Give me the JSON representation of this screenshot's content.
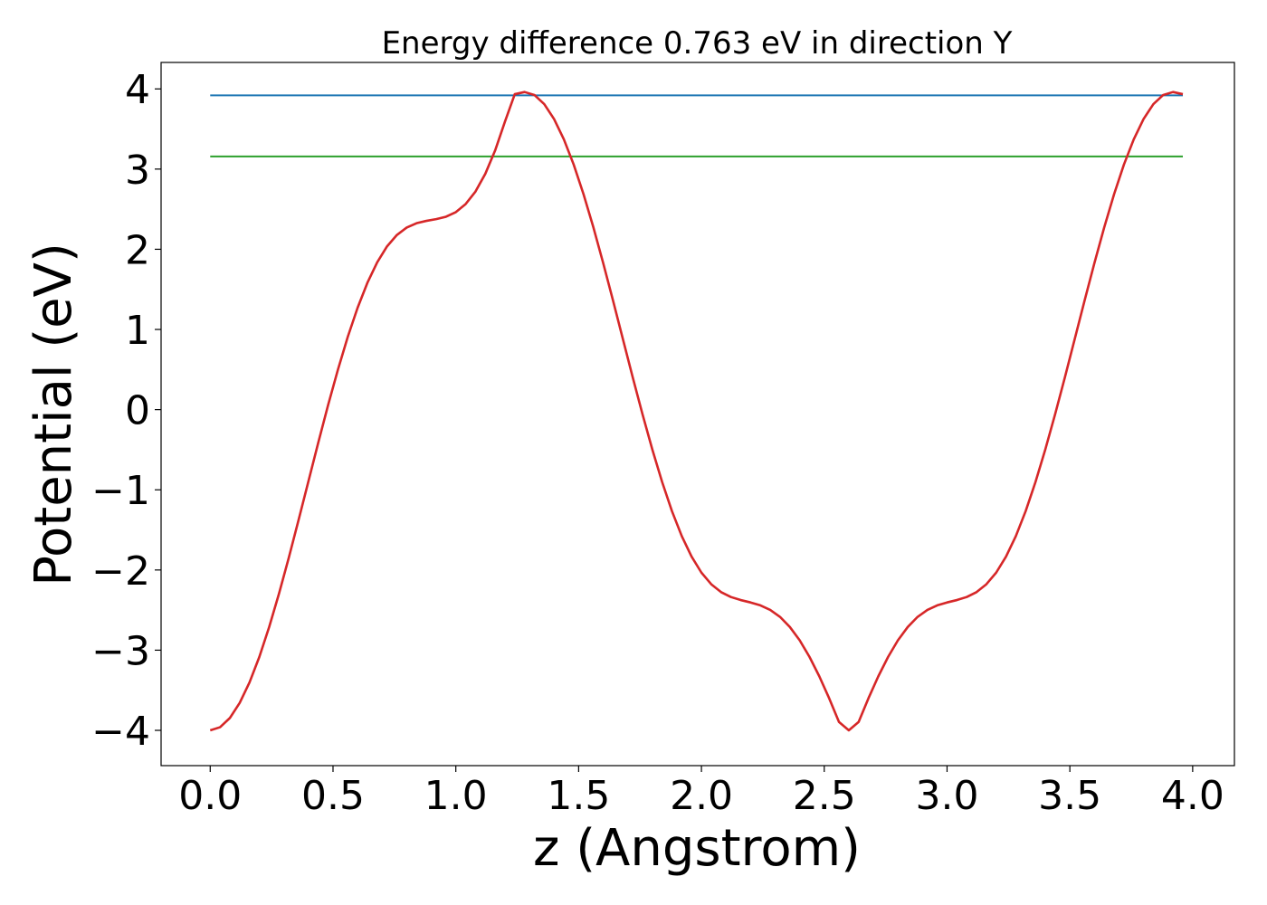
{
  "chart_data": {
    "type": "line",
    "title": "Energy difference 0.763 eV in direction Y",
    "xlabel": "z (Angstrom)",
    "ylabel": "Potential (eV)",
    "xlim": [
      -0.2,
      4.17
    ],
    "ylim": [
      -4.44,
      4.33
    ],
    "xticks": [
      0.0,
      0.5,
      1.0,
      1.5,
      2.0,
      2.5,
      3.0,
      3.5,
      4.0
    ],
    "xtick_labels": [
      "0.0",
      "0.5",
      "1.0",
      "1.5",
      "2.0",
      "2.5",
      "3.0",
      "3.5",
      "4.0"
    ],
    "yticks": [
      -4,
      -3,
      -2,
      -1,
      0,
      1,
      2,
      3,
      4
    ],
    "ytick_labels": [
      "−4",
      "−3",
      "−2",
      "−1",
      "0",
      "1",
      "2",
      "3",
      "4"
    ],
    "grid": false,
    "series": [
      {
        "color": "#1f77b4",
        "x": [
          0.0,
          3.96
        ],
        "y": [
          3.92,
          3.92
        ]
      },
      {
        "color": "#2ca02c",
        "x": [
          0.0,
          3.96
        ],
        "y": [
          3.157,
          3.157
        ]
      },
      {
        "color": "#d62728",
        "x": [
          0.0,
          0.04,
          0.08,
          0.12,
          0.16,
          0.2,
          0.24,
          0.28,
          0.32,
          0.36,
          0.4,
          0.44,
          0.48,
          0.52,
          0.56,
          0.6,
          0.64,
          0.68,
          0.72,
          0.76,
          0.8,
          0.84,
          0.88,
          0.92,
          0.96,
          1.0,
          1.04,
          1.08,
          1.12,
          1.16,
          1.2,
          1.24,
          1.28,
          1.32,
          1.36,
          1.4,
          1.44,
          1.48,
          1.52,
          1.56,
          1.6,
          1.64,
          1.68,
          1.72,
          1.76,
          1.8,
          1.84,
          1.88,
          1.92,
          1.96,
          2.0,
          2.04,
          2.08,
          2.12,
          2.16,
          2.2,
          2.24,
          2.28,
          2.32,
          2.36,
          2.4,
          2.44,
          2.48,
          2.52,
          2.56,
          2.6,
          2.64,
          2.68,
          2.72,
          2.76,
          2.8,
          2.84,
          2.88,
          2.92,
          2.96,
          3.0,
          3.04,
          3.08,
          3.12,
          3.16,
          3.2,
          3.24,
          3.28,
          3.32,
          3.36,
          3.4,
          3.44,
          3.48,
          3.52,
          3.56,
          3.6,
          3.64,
          3.68,
          3.72,
          3.76,
          3.8,
          3.84,
          3.88,
          3.92,
          3.96
        ],
        "y": [
          -4.0,
          -3.961,
          -3.846,
          -3.658,
          -3.402,
          -3.084,
          -2.712,
          -2.296,
          -1.846,
          -1.374,
          -0.892,
          -0.411,
          0.057,
          0.499,
          0.907,
          1.27,
          1.582,
          1.838,
          2.036,
          2.178,
          2.271,
          2.325,
          2.354,
          2.376,
          2.406,
          2.463,
          2.564,
          2.72,
          2.941,
          3.232,
          3.591,
          3.934,
          3.961,
          3.924,
          3.81,
          3.624,
          3.37,
          3.055,
          2.686,
          2.274,
          1.828,
          1.361,
          0.883,
          0.406,
          -0.057,
          -0.497,
          -0.903,
          -1.266,
          -1.578,
          -1.834,
          -2.033,
          -2.178,
          -2.276,
          -2.337,
          -2.375,
          -2.405,
          -2.441,
          -2.498,
          -2.585,
          -2.711,
          -2.877,
          -3.084,
          -3.327,
          -3.6,
          -3.896,
          -4.0,
          -3.896,
          -3.6,
          -3.327,
          -3.084,
          -2.877,
          -2.711,
          -2.585,
          -2.498,
          -2.441,
          -2.405,
          -2.375,
          -2.337,
          -2.276,
          -2.178,
          -2.033,
          -1.834,
          -1.578,
          -1.266,
          -0.903,
          -0.497,
          -0.057,
          0.406,
          0.883,
          1.361,
          1.828,
          2.274,
          2.686,
          3.055,
          3.37,
          3.624,
          3.81,
          3.924,
          3.961,
          3.934
        ]
      }
    ]
  }
}
